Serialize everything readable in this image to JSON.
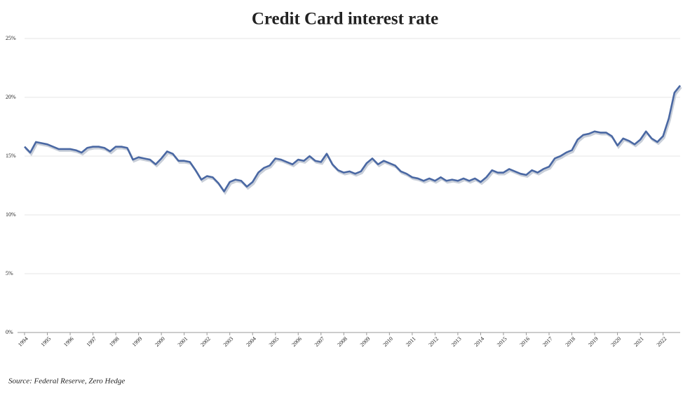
{
  "chart_data": {
    "type": "line",
    "title": "Credit Card interest rate",
    "source": "Source: Federal Reserve, Zero Hedge",
    "x": [
      1994,
      1994.25,
      1994.5,
      1994.75,
      1995,
      1995.25,
      1995.5,
      1995.75,
      1996,
      1996.25,
      1996.5,
      1996.75,
      1997,
      1997.25,
      1997.5,
      1997.75,
      1998,
      1998.25,
      1998.5,
      1998.75,
      1999,
      1999.25,
      1999.5,
      1999.75,
      2000,
      2000.25,
      2000.5,
      2000.75,
      2001,
      2001.25,
      2001.5,
      2001.75,
      2002,
      2002.25,
      2002.5,
      2002.75,
      2003,
      2003.25,
      2003.5,
      2003.75,
      2004,
      2004.25,
      2004.5,
      2004.75,
      2005,
      2005.25,
      2005.5,
      2005.75,
      2006,
      2006.25,
      2006.5,
      2006.75,
      2007,
      2007.25,
      2007.5,
      2007.75,
      2008,
      2008.25,
      2008.5,
      2008.75,
      2009,
      2009.25,
      2009.5,
      2009.75,
      2010,
      2010.25,
      2010.5,
      2010.75,
      2011,
      2011.25,
      2011.5,
      2011.75,
      2012,
      2012.25,
      2012.5,
      2012.75,
      2013,
      2013.25,
      2013.5,
      2013.75,
      2014,
      2014.25,
      2014.5,
      2014.75,
      2015,
      2015.25,
      2015.5,
      2015.75,
      2016,
      2016.25,
      2016.5,
      2016.75,
      2017,
      2017.25,
      2017.5,
      2017.75,
      2018,
      2018.25,
      2018.5,
      2018.75,
      2019,
      2019.25,
      2019.5,
      2019.75,
      2020,
      2020.25,
      2020.5,
      2020.75,
      2021,
      2021.25,
      2021.5,
      2021.75,
      2022,
      2022.25,
      2022.5,
      2022.75
    ],
    "series": [
      {
        "color": "#4a68a3",
        "values": [
          15.8,
          15.3,
          16.2,
          16.1,
          16.0,
          15.8,
          15.6,
          15.6,
          15.6,
          15.5,
          15.3,
          15.7,
          15.8,
          15.8,
          15.7,
          15.4,
          15.8,
          15.8,
          15.7,
          14.7,
          14.9,
          14.8,
          14.7,
          14.3,
          14.8,
          15.4,
          15.2,
          14.6,
          14.6,
          14.5,
          13.8,
          13.0,
          13.3,
          13.2,
          12.7,
          12.0,
          12.8,
          13.0,
          12.9,
          12.4,
          12.8,
          13.6,
          14.0,
          14.2,
          14.8,
          14.7,
          14.5,
          14.3,
          14.7,
          14.6,
          15.0,
          14.6,
          14.5,
          15.2,
          14.3,
          13.8,
          13.6,
          13.7,
          13.5,
          13.7,
          14.4,
          14.8,
          14.3,
          14.6,
          14.4,
          14.2,
          13.7,
          13.5,
          13.2,
          13.1,
          12.9,
          13.1,
          12.9,
          13.2,
          12.9,
          13.0,
          12.9,
          13.1,
          12.9,
          13.1,
          12.8,
          13.2,
          13.8,
          13.6,
          13.6,
          13.9,
          13.7,
          13.5,
          13.4,
          13.8,
          13.6,
          13.9,
          14.1,
          14.8,
          15.0,
          15.3,
          15.5,
          16.4,
          16.8,
          16.9,
          17.1,
          17.0,
          17.0,
          16.7,
          15.9,
          16.5,
          16.3,
          16.0,
          16.4,
          17.1,
          16.5,
          16.2,
          16.7,
          18.2,
          20.4,
          21.0
        ]
      }
    ],
    "xlim": [
      1994,
      2022.75
    ],
    "xticks": [
      1994,
      1995,
      1996,
      1997,
      1998,
      1999,
      2000,
      2001,
      2002,
      2003,
      2004,
      2005,
      2006,
      2007,
      2008,
      2009,
      2010,
      2011,
      2012,
      2013,
      2014,
      2015,
      2016,
      2017,
      2018,
      2019,
      2020,
      2021,
      2022
    ],
    "ylim": [
      0,
      25
    ],
    "yticks": [
      {
        "value": 0,
        "label": "0%"
      },
      {
        "value": 5,
        "label": "5%"
      },
      {
        "value": 10,
        "label": "10%"
      },
      {
        "value": 15,
        "label": "15%"
      },
      {
        "value": 20,
        "label": "20%"
      },
      {
        "value": 25,
        "label": "25%"
      }
    ],
    "grid": true
  }
}
